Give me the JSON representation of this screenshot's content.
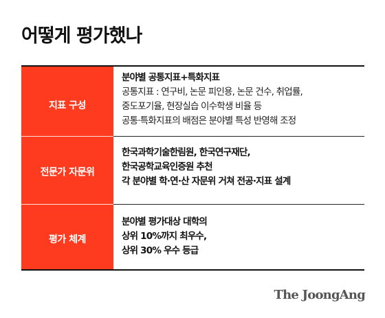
{
  "title": "어떻게 평가했나",
  "rows": [
    {
      "label": "지표 구성",
      "lines": [
        {
          "text": "분야별 공통지표+특화지표",
          "bold": true
        },
        {
          "text": "공통지표 : 연구비, 논문 피인용, 논문 건수, 취업률,",
          "bold": false
        },
        {
          "text": "중도포기율, 현장실습 이수학생 비율 등",
          "bold": false
        },
        {
          "text": "공통·특화지표의 배점은 분야별 특성 반영해 조정",
          "bold": false
        }
      ]
    },
    {
      "label": "전문가 자문위",
      "lines": [
        {
          "text": "한국과학기술한림원, 한국연구재단,",
          "bold": true
        },
        {
          "text": "한국공학교육인증원 추천",
          "bold": true
        },
        {
          "text": "각 분야별 학·연·산 자문위 거쳐 전공·지표 설계",
          "bold": true
        }
      ]
    },
    {
      "label": "평가 체계",
      "lines": [
        {
          "text": "분야별 평가대상 대학의",
          "bold": true
        },
        {
          "text": "상위 10%까지 최우수,",
          "bold": true
        },
        {
          "text": "상위 30% 우수 등급",
          "bold": true
        }
      ]
    }
  ],
  "logo": "The JoongAng",
  "colors": {
    "accent": "#ff3b1f",
    "text": "#1a1a1a"
  }
}
